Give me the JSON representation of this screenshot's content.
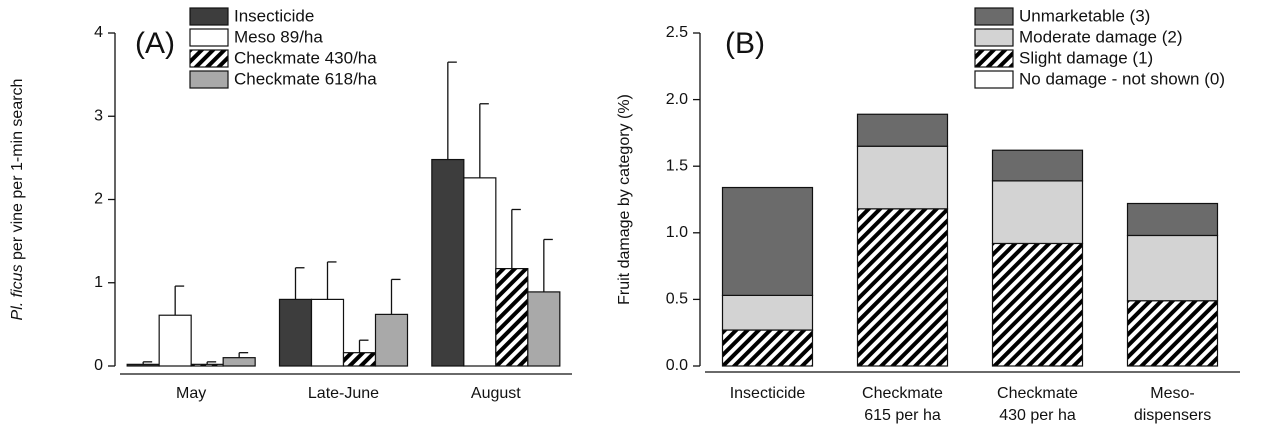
{
  "chart_data": [
    {
      "type": "bar",
      "panel_label": "(A)",
      "ylabel_italic": "Pl. ficus",
      "ylabel": "per vine per 1-min search",
      "categories": [
        "May",
        "Late-June",
        "August"
      ],
      "ylim": [
        0,
        4
      ],
      "yticks": [
        0,
        1,
        2,
        3,
        4
      ],
      "series": [
        {
          "name": "Insecticide",
          "color": "#3d3d3d",
          "values": [
            0.02,
            0.8,
            2.48
          ],
          "errors": [
            0.03,
            0.38,
            1.17
          ]
        },
        {
          "name": "Meso 89/ha",
          "color": "#ffffff",
          "values": [
            0.61,
            0.8,
            2.26
          ],
          "errors": [
            0.35,
            0.45,
            0.89
          ]
        },
        {
          "name": "Checkmate 430/ha",
          "color": "#000000",
          "hatch": true,
          "values": [
            0.02,
            0.16,
            1.17
          ],
          "errors": [
            0.03,
            0.15,
            0.71
          ]
        },
        {
          "name": "Checkmate 618/ha",
          "color": "#a9a9a9",
          "values": [
            0.1,
            0.62,
            0.89
          ],
          "errors": [
            0.06,
            0.42,
            0.63
          ]
        }
      ]
    },
    {
      "type": "stacked_bar",
      "panel_label": "(B)",
      "ylabel": "Fruit damage by category (%)",
      "categories": [
        [
          "Insecticide"
        ],
        [
          "Checkmate",
          "615 per ha"
        ],
        [
          "Checkmate",
          "430 per ha"
        ],
        [
          "Meso-",
          "dispensers"
        ]
      ],
      "ylim": [
        0,
        2.5
      ],
      "yticks": [
        {
          "value": 0,
          "label": "0.0"
        },
        0.5,
        {
          "value": 1,
          "label": "1.0"
        },
        1.5,
        {
          "value": 2,
          "label": "2.0"
        },
        2.5
      ],
      "series": [
        {
          "name": "Unmarketable (3)",
          "color": "#6b6b6b",
          "values": [
            0.81,
            0.24,
            0.23,
            0.24
          ]
        },
        {
          "name": "Moderate damage (2)",
          "color": "#d3d3d3",
          "values": [
            0.26,
            0.47,
            0.47,
            0.49
          ]
        },
        {
          "name": "Slight damage (1)",
          "color": "#000000",
          "hatch": true,
          "values": [
            0.27,
            1.18,
            0.92,
            0.49
          ]
        },
        {
          "name": "No damage - not shown (0)",
          "color": "#ffffff"
        }
      ]
    }
  ]
}
